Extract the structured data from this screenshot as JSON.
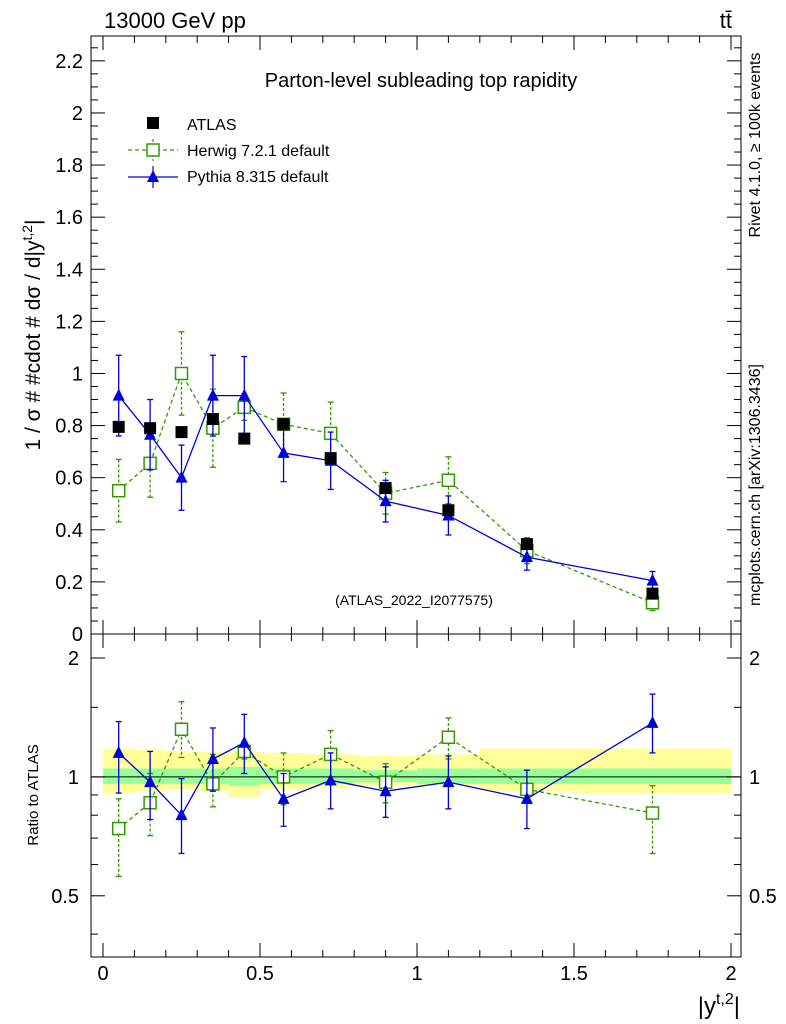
{
  "header": {
    "energy_label": "13000 GeV pp",
    "process_label": "tt̄"
  },
  "side_labels": {
    "rivet": "Rivet 4.1.0, ≥ 100k events",
    "mcplots": "mcplots.cern.ch [arXiv:1306.3436]"
  },
  "chart_data": [
    {
      "panel": "main",
      "type": "scatter",
      "title": "Parton-level subleading top rapidity",
      "watermark": "(ATLAS_2022_I2077575)",
      "ylabel": "1 / σ # #cdot # dσ / d|y^{t,2}|",
      "ylabel_main": "1 / σ # #cdot # dσ / d|y",
      "ylabel_sup": "t,2",
      "ylabel_close": "|",
      "xlim": [
        0,
        2
      ],
      "ylim": [
        0,
        2.28
      ],
      "y_ticks": [
        0,
        0.2,
        0.4,
        0.6,
        0.8,
        1,
        1.2,
        1.4,
        1.6,
        1.8,
        2,
        2.2
      ],
      "y_tick_labels": [
        "0",
        "0.2",
        "0.4",
        "0.6",
        "0.8",
        "1",
        "1.2",
        "1.4",
        "1.6",
        "1.8",
        "2",
        "2.2"
      ],
      "legend": {
        "position": "top-left",
        "entries": [
          "ATLAS",
          "Herwig 7.2.1 default",
          "Pythia 8.315 default"
        ]
      },
      "series": [
        {
          "name": "ATLAS",
          "color": "#000000",
          "marker": "square-filled",
          "x": [
            0.05,
            0.15,
            0.25,
            0.35,
            0.45,
            0.575,
            0.725,
            0.9,
            1.1,
            1.35,
            1.75
          ],
          "values": [
            0.795,
            0.79,
            0.775,
            0.825,
            0.75,
            0.805,
            0.675,
            0.56,
            0.475,
            0.345,
            0.155
          ],
          "err": [
            0,
            0,
            0,
            0,
            0,
            0,
            0,
            0,
            0,
            0,
            0
          ]
        },
        {
          "name": "Herwig 7.2.1 default",
          "color": "#339900",
          "marker": "square-open",
          "line": "dashed",
          "x": [
            0.05,
            0.15,
            0.25,
            0.35,
            0.45,
            0.575,
            0.725,
            0.9,
            1.1,
            1.35,
            1.75
          ],
          "values": [
            0.55,
            0.655,
            1.0,
            0.79,
            0.87,
            0.805,
            0.77,
            0.54,
            0.59,
            0.32,
            0.12
          ],
          "err": [
            0.12,
            0.13,
            0.16,
            0.15,
            0.05,
            0.12,
            0.12,
            0.08,
            0.09,
            0.05,
            0.03
          ]
        },
        {
          "name": "Pythia 8.315 default",
          "color": "#0000dd",
          "marker": "triangle-filled",
          "line": "solid",
          "x": [
            0.05,
            0.15,
            0.25,
            0.35,
            0.45,
            0.575,
            0.725,
            0.9,
            1.1,
            1.35,
            1.75
          ],
          "values": [
            0.915,
            0.765,
            0.6,
            0.915,
            0.915,
            0.695,
            0.665,
            0.51,
            0.455,
            0.295,
            0.205
          ],
          "err": [
            0.155,
            0.135,
            0.125,
            0.155,
            0.15,
            0.11,
            0.11,
            0.08,
            0.075,
            0.05,
            0.035
          ]
        }
      ]
    },
    {
      "panel": "ratio",
      "type": "scatter",
      "ylabel": "Ratio to ATLAS",
      "xlabel": "|y^{t,2}|",
      "xlabel_main": "|y",
      "xlabel_sup": "t,2",
      "xlabel_close": "|",
      "xlim": [
        0,
        2
      ],
      "ylim": [
        0.35,
        2.3
      ],
      "y_scale": "log",
      "y_tick_labels_left": [
        "0.5",
        "1",
        "2"
      ],
      "y_tick_values": [
        0.5,
        1,
        2
      ],
      "y_tick_labels_right": [
        "0.5",
        "1",
        "2"
      ],
      "x_ticks": [
        0,
        0.5,
        1,
        1.5,
        2
      ],
      "x_tick_labels": [
        "0",
        "0.5",
        "1",
        "1.5",
        "2"
      ],
      "reference_line": 1,
      "bands": {
        "bin_edges": [
          0,
          0.1,
          0.2,
          0.3,
          0.4,
          0.5,
          0.65,
          0.8,
          1.0,
          1.2,
          1.5,
          2.0
        ],
        "total_up": [
          1.18,
          1.17,
          1.16,
          1.16,
          1.16,
          1.15,
          1.14,
          1.13,
          1.14,
          1.18,
          1.18
        ],
        "total_down": [
          0.91,
          0.92,
          0.93,
          0.92,
          0.89,
          0.93,
          0.94,
          0.95,
          0.95,
          0.92,
          0.91
        ],
        "stat_up": [
          1.05,
          1.05,
          1.05,
          1.05,
          1.06,
          1.05,
          1.05,
          1.04,
          1.05,
          1.05,
          1.05
        ],
        "stat_down": [
          0.96,
          0.96,
          0.96,
          0.96,
          0.95,
          0.96,
          0.96,
          0.97,
          0.96,
          0.96,
          0.96
        ],
        "total_color": "#ffff99",
        "stat_color": "#99ff99"
      },
      "series": [
        {
          "name": "Herwig 7.2.1 default",
          "color": "#339900",
          "marker": "square-open",
          "line": "dashed",
          "x": [
            0.05,
            0.15,
            0.25,
            0.35,
            0.45,
            0.575,
            0.725,
            0.9,
            1.1,
            1.35,
            1.75
          ],
          "values": [
            0.74,
            0.86,
            1.32,
            0.96,
            1.16,
            1.0,
            1.14,
            0.97,
            1.26,
            0.93,
            0.81
          ],
          "err_up": [
            0.14,
            0.16,
            0.23,
            0.18,
            0.06,
            0.15,
            0.17,
            0.11,
            0.15,
            0.11,
            0.14
          ],
          "err_down": [
            0.18,
            0.15,
            0.2,
            0.12,
            0.05,
            0.15,
            0.17,
            0.11,
            0.15,
            0.07,
            0.17
          ]
        },
        {
          "name": "Pythia 8.315 default",
          "color": "#0000dd",
          "marker": "triangle-filled",
          "line": "solid",
          "x": [
            0.05,
            0.15,
            0.25,
            0.35,
            0.45,
            0.575,
            0.725,
            0.9,
            1.1,
            1.35,
            1.75
          ],
          "values": [
            1.15,
            0.97,
            0.8,
            1.11,
            1.22,
            0.88,
            0.98,
            0.92,
            0.97,
            0.88,
            1.37
          ],
          "err_up": [
            0.23,
            0.19,
            0.19,
            0.22,
            0.22,
            0.14,
            0.17,
            0.14,
            0.16,
            0.16,
            0.25
          ],
          "err_down": [
            0.24,
            0.19,
            0.16,
            0.19,
            0.2,
            0.13,
            0.15,
            0.13,
            0.14,
            0.14,
            0.22
          ]
        }
      ]
    }
  ]
}
